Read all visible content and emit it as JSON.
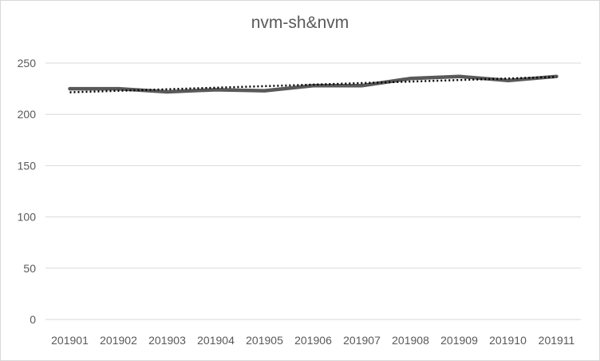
{
  "chart_data": {
    "type": "line",
    "title": "nvm-sh&nvm",
    "xlabel": "",
    "ylabel": "",
    "categories": [
      "201901",
      "201902",
      "201903",
      "201904",
      "201905",
      "201906",
      "201907",
      "201908",
      "201909",
      "201910",
      "201911"
    ],
    "series": [
      {
        "values": [
          225,
          225,
          222,
          224,
          223,
          228,
          228,
          235,
          237,
          233,
          237
        ],
        "color": "#595959",
        "style": "solid"
      },
      {
        "values": [
          221.5,
          223,
          224.5,
          226,
          227.5,
          229,
          230.5,
          232,
          233.5,
          235,
          236.5
        ],
        "color": "#000000",
        "style": "dotted-trendline"
      }
    ],
    "ylim": [
      0,
      250
    ],
    "yticks": [
      "0",
      "50",
      "100",
      "150",
      "200",
      "250"
    ],
    "grid": true,
    "legend": "none"
  }
}
